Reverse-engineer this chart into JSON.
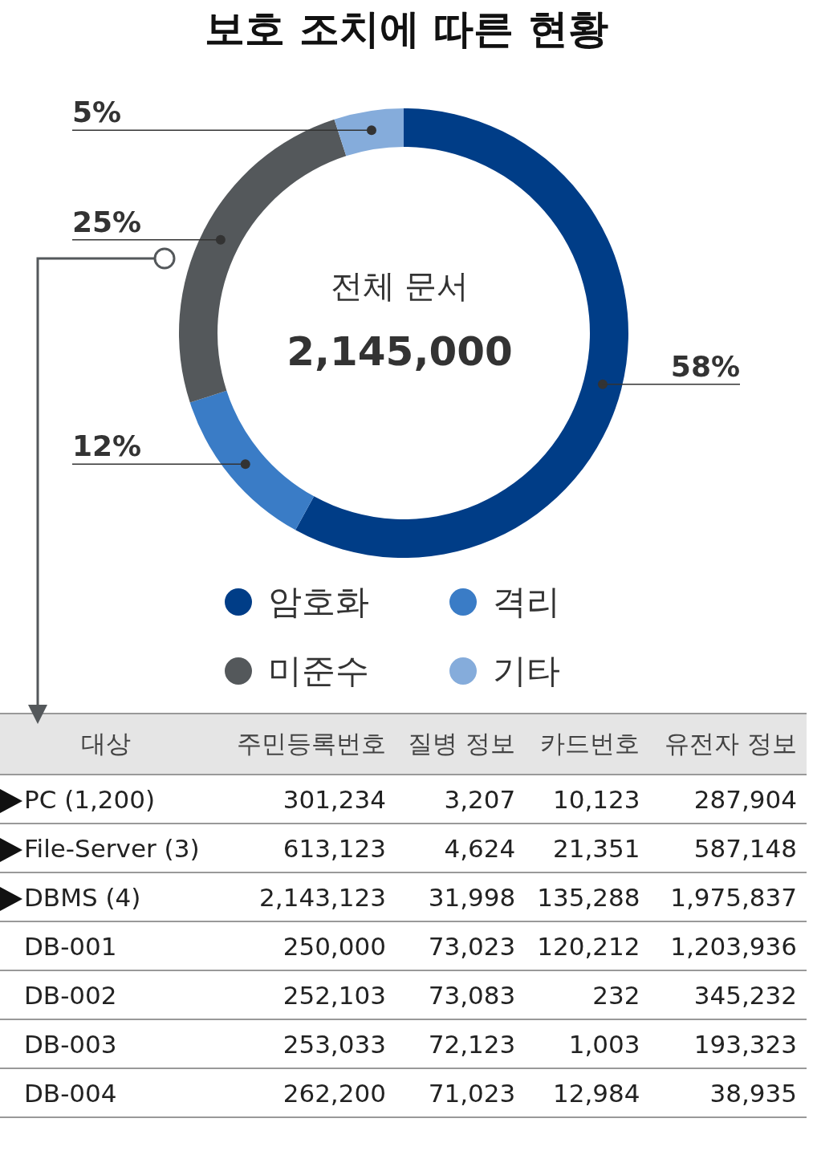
{
  "chart_data": [
    {
      "type": "donut",
      "title": "보호 조치에 따른 현황",
      "categories": [
        "암호화",
        "격리",
        "미준수",
        "기타"
      ],
      "values": [
        58,
        12,
        25,
        5
      ],
      "colors": [
        "#003d87",
        "#3a7cc6",
        "#54585b",
        "#85acdb"
      ],
      "value_labels": [
        "58%",
        "12%",
        "25%",
        "5%"
      ],
      "annotations": [
        "전체 문서",
        "2,145,000"
      ],
      "legend": "bottom"
    },
    {
      "type": "other",
      "categories": [
        "대상",
        "주민등록번호",
        "질병 정보",
        "카드번호",
        "유전자 정보"
      ],
      "y_categories": [
        "PC (1,200)",
        "File-Server (3)",
        "DBMS (4)",
        "DB-001",
        "DB-002",
        "DB-003",
        "DB-004"
      ],
      "cell_labels": [
        [
          "301,234",
          "3,207",
          "10,123",
          "287,904"
        ],
        [
          "613,123",
          "4,624",
          "21,351",
          "587,148"
        ],
        [
          "2,143,123",
          "31,998",
          "135,288",
          "1,975,837"
        ],
        [
          "250,000",
          "73,023",
          "120,212",
          "1,203,936"
        ],
        [
          "252,103",
          "73,083",
          "232",
          "345,232"
        ],
        [
          "253,033",
          "72,123",
          "1,003",
          "193,323"
        ],
        [
          "262,200",
          "71,023",
          "12,984",
          "38,935"
        ]
      ]
    }
  ]
}
